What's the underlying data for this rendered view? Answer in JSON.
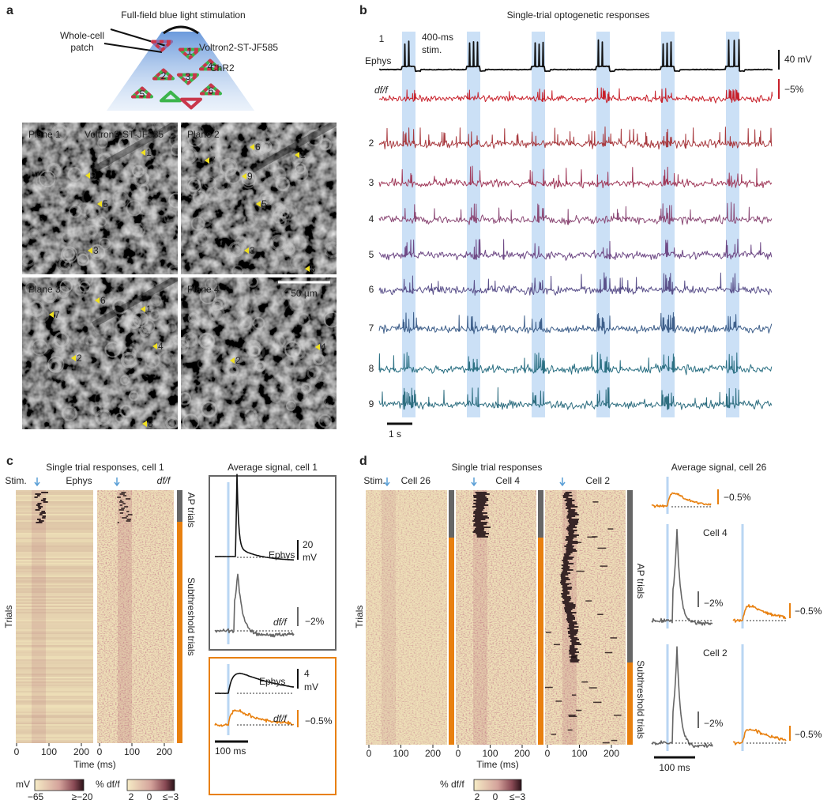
{
  "panel_a": {
    "label": "a",
    "diagram": {
      "title": "Full-field blue light stimulation",
      "patch_label": [
        "Whole-cell",
        "patch"
      ],
      "indicator": "Voltron2-ST-JF585",
      "opsin": "ChR2",
      "cells": [
        "1",
        "2",
        "3",
        "4",
        "5",
        "6"
      ]
    },
    "images": [
      {
        "label": "Plane 1",
        "indicator": "Voltron2-ST-JF585",
        "markers": [
          "1",
          "9",
          "5",
          "3"
        ]
      },
      {
        "label": "Plane 2",
        "markers": [
          "6",
          "1",
          "7",
          "9",
          "5",
          "3",
          "8"
        ]
      },
      {
        "label": "Plane 3",
        "markers": [
          "6",
          "1",
          "7",
          "4",
          "2",
          "8"
        ]
      },
      {
        "label": "Plane 4",
        "scale_bar": "50 µm",
        "markers": [
          "4",
          "2"
        ]
      }
    ]
  },
  "panel_b": {
    "label": "b",
    "title": "Single-trial optogenetic responses",
    "stim_label": [
      "400-ms",
      "stim."
    ],
    "cell_1": "1",
    "ephys": "Ephys",
    "dff": "df/f",
    "ephys_scale": "40 mV",
    "dff_scale": "−5%",
    "rows": [
      "2",
      "3",
      "4",
      "5",
      "6",
      "7",
      "8",
      "9"
    ],
    "time_scale": "1 s"
  },
  "panel_c": {
    "label": "c",
    "title": "Single trial responses, cell 1",
    "stim": "Stim.",
    "ephys": "Ephys",
    "dff": "df/f",
    "ap_trials": "AP trials",
    "sub_trials": "Subthreshold trials",
    "y_label": "Trials",
    "xticks": [
      0,
      100,
      200
    ],
    "x_label": "Time (ms)",
    "colorbars": [
      {
        "unit": "mV",
        "ticks": [
          "−65",
          "≥−20"
        ]
      },
      {
        "unit": "% df/f",
        "ticks": [
          "2",
          "0",
          "≤−3"
        ]
      }
    ],
    "average": {
      "title": "Average signal, cell 1",
      "ap": {
        "ephys": "Ephys",
        "ephys_scale": [
          "20",
          "mV"
        ],
        "dff": "df/f",
        "dff_scale": "−2%"
      },
      "sub": {
        "ephys": "Ephys",
        "ephys_scale": [
          "4",
          "mV"
        ],
        "dff": "df/f",
        "dff_scale": "−0.5%"
      },
      "time_scale": "100 ms"
    }
  },
  "panel_d": {
    "label": "d",
    "title": "Single trial responses",
    "stim": "Stim.",
    "cells": [
      "Cell 26",
      "Cell 4",
      "Cell 2"
    ],
    "ap_trials": "AP trials",
    "sub_trials": "Subthreshold trials",
    "y_label": "Trials",
    "xticks": [
      0,
      100,
      200
    ],
    "x_label": "Time (ms)",
    "colorbar": {
      "unit": "% df/f",
      "ticks": [
        "2",
        "0",
        "≤−3"
      ]
    },
    "average": {
      "title": "Average signal, cell 26",
      "cell26_scale": "−0.5%",
      "cell4": {
        "label": "Cell 4",
        "ap_scale": "−2%",
        "sub_scale": "−0.5%"
      },
      "cell2": {
        "label": "Cell 2",
        "ap_scale": "−2%",
        "sub_scale": "−0.5%"
      },
      "time_scale": "100 ms"
    }
  }
}
